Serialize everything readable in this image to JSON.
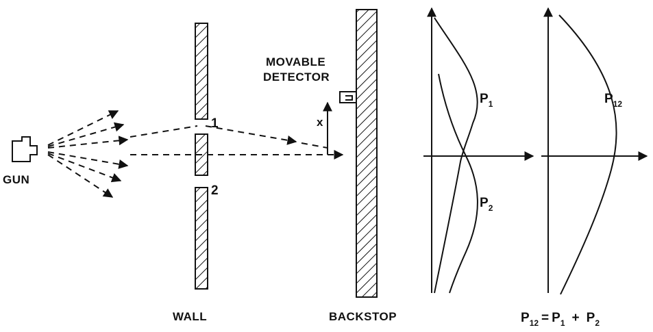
{
  "labels": {
    "gun": "GUN",
    "wall": "WALL",
    "backstop": "BACKSTOP",
    "detector_line1": "MOVABLE",
    "detector_line2": "DETECTOR",
    "x_axis": "x",
    "hole_1": "1",
    "hole_2": "2"
  },
  "curves": {
    "p1_main": "P",
    "p1_sub": "1",
    "p2_main": "P",
    "p2_sub": "2",
    "p12_main": "P",
    "p12_sub": "12"
  },
  "formula": {
    "p12": "P",
    "p12_sub": "12",
    "eq": "=",
    "p1": "P",
    "p1_sub": "1",
    "plus": "+",
    "p2": "P",
    "p2_sub": "2"
  },
  "colors": {
    "ink": "#111111",
    "paper": "#ffffff"
  }
}
